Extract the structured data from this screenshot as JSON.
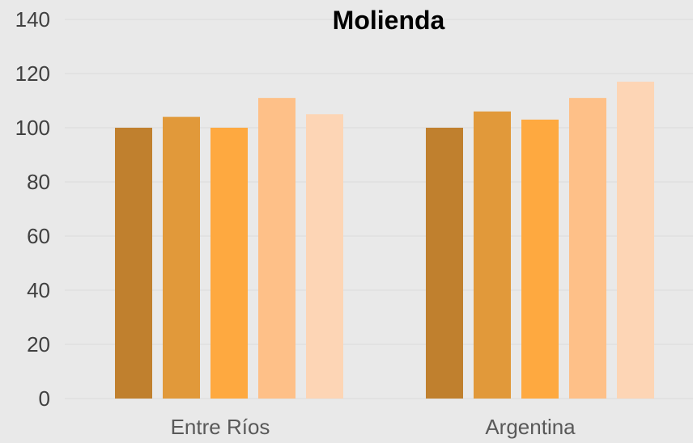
{
  "chart_data": {
    "type": "bar",
    "title": "Molienda",
    "categories": [
      "Entre Ríos",
      "Argentina"
    ],
    "series": [
      {
        "values": [
          100,
          100
        ],
        "color": "#c0802e"
      },
      {
        "values": [
          104,
          106
        ],
        "color": "#e1993a"
      },
      {
        "values": [
          100,
          103
        ],
        "color": "#fea940"
      },
      {
        "values": [
          111,
          111
        ],
        "color": "#fec088"
      },
      {
        "values": [
          105,
          117
        ],
        "color": "#fdd5b5"
      }
    ],
    "ylim": [
      0,
      140
    ],
    "yticks": [
      "0",
      "20",
      "40",
      "60",
      "80",
      "100",
      "120",
      "140"
    ],
    "grid": true,
    "legend": "none"
  }
}
